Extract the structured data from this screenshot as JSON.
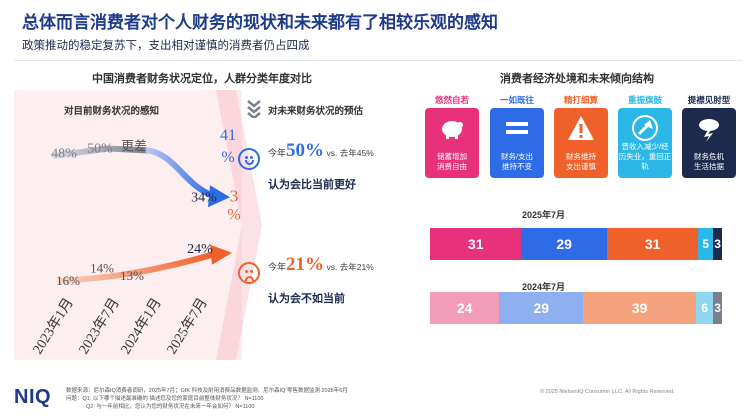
{
  "title": "总体而言消费者对个人财务的现状和未来都有了相较乐观的感知",
  "subtitle": "政策推动的稳定复苏下，支出相对谨慎的消费者仍占四成",
  "left_panel": {
    "title": "中国消费者财务状况定位，人群分类年度对比",
    "current_label": "对目前财务状况的感知",
    "future_label": "对未来财务状况的预估"
  },
  "chart_data": [
    {
      "type": "line",
      "title": "",
      "x": [
        "2023年1月",
        "2023年7月",
        "2024年1月",
        "2025年7月"
      ],
      "series": [
        {
          "name": "更差",
          "values": [
            48,
            50,
            null,
            null
          ],
          "color": "#7a7f8c"
        },
        {
          "name": "",
          "values": [
            null,
            null,
            null,
            34
          ],
          "color": "#2e6be6"
        },
        {
          "name": "",
          "values": [
            16,
            14,
            13,
            24
          ],
          "color": "#f0602a"
        }
      ],
      "labels": {
        "worse_2023_1": "48%",
        "worse_2023_7": "50%",
        "worse_text": "更差",
        "worse_2025_7": "34%",
        "better_2025_7_top": "41%",
        "better_2025_7_3": "3",
        "better_2025_7_pct": "%",
        "better_2023_1": "16%",
        "better_2023_7": "14%",
        "better_2024_1": "13%",
        "better_2025_7": "24%"
      }
    },
    {
      "type": "bar",
      "title": "2025年7月",
      "orientation": "horizontal-stacked",
      "values": [
        31,
        29,
        31,
        5,
        3
      ],
      "colors": [
        "#e8317b",
        "#2e6be6",
        "#f0602a",
        "#2bb8e8",
        "#1d2a4d"
      ]
    },
    {
      "type": "bar",
      "title": "2024年7月",
      "orientation": "horizontal-stacked",
      "values": [
        24,
        29,
        39,
        6,
        3
      ],
      "colors": [
        "#f29cb9",
        "#8fb0f0",
        "#f5a37e",
        "#8fd7f0",
        "#7a7f8c"
      ]
    }
  ],
  "stats": {
    "better": {
      "prefix": "今年",
      "value": "50%",
      "vs": "vs. 去年45%",
      "desc": "认为会比当前更好"
    },
    "worse": {
      "prefix": "今年",
      "value": "21%",
      "vs": "vs. 去年21%",
      "desc": "认为会不如当前"
    }
  },
  "right_panel": {
    "title": "消费者经济处境和未来倾向结构",
    "cards": [
      {
        "label": "悠然自若",
        "text1": "储蓄增加",
        "text2": "消费自由",
        "color": "#e8317b",
        "label_color": "#e8317b",
        "icon": "piggy-bank-icon"
      },
      {
        "label": "一如既往",
        "text1": "财务/支出",
        "text2": "维持不变",
        "color": "#2e6be6",
        "label_color": "#2e6be6",
        "icon": "equals-icon"
      },
      {
        "label": "精打细算",
        "text1": "财务维持",
        "text2": "支出谨慎",
        "color": "#f0602a",
        "label_color": "#f0602a",
        "icon": "warning-icon"
      },
      {
        "label": "重振旗鼓",
        "text1": "曾收入减少/经",
        "text2": "历失业，重回正轨",
        "color": "#2bb8e8",
        "label_color": "#2bb8e8",
        "icon": "rising-arrow-icon"
      },
      {
        "label": "提襟见肘型",
        "text1": "财务危机",
        "text2": "生活拮据",
        "color": "#1d2a4d",
        "label_color": "#1d2a4d",
        "icon": "storm-cloud-icon"
      }
    ]
  },
  "footer": {
    "logo": "NIQ",
    "note1": "数据来源：尼尔森IQ消费者调研，2025年7月；GfK 科技及耐用消费品数据监测、尼尔森IQ 零售数据监测 2025年6月",
    "note2": "问题：Q1: 以下哪个描述最准确的 描述您及您的家庭目前整体财务状况？ N=1100",
    "note3": "Q2: 与一年前相比，您认为您的财务状况在未来一年会如何？ N=1100",
    "copyright": "© 2025 NielsenIQ Consumer LLC. All Rights Reserved."
  }
}
